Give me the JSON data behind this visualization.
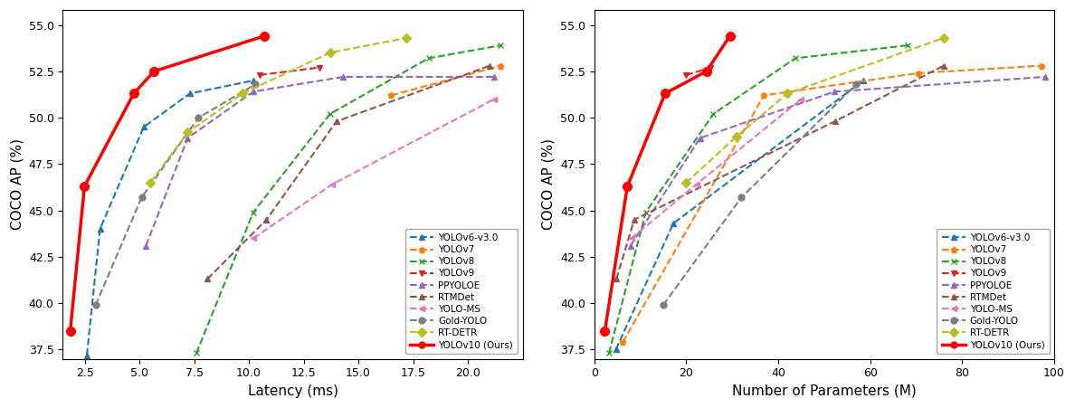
{
  "left_chart": {
    "xlabel": "Latency (ms)",
    "ylabel": "COCO AP (%)",
    "xlim": [
      1.5,
      22.5
    ],
    "ylim": [
      37.0,
      55.8
    ],
    "series": {
      "YOLOv6-v3.0": {
        "x": [
          2.6,
          3.2,
          5.2,
          7.3,
          10.2
        ],
        "y": [
          37.2,
          44.0,
          49.5,
          51.3,
          52.0
        ],
        "color": "#1f77b4",
        "marker": "^",
        "linestyle": "--",
        "lw": 1.5
      },
      "YOLOv7": {
        "x": [
          16.5,
          21.5
        ],
        "y": [
          51.2,
          52.8
        ],
        "color": "#ff7f0e",
        "marker": "p",
        "linestyle": "--",
        "lw": 1.5
      },
      "YOLOv8": {
        "x": [
          7.6,
          10.2,
          13.7,
          18.2,
          21.5
        ],
        "y": [
          37.3,
          44.9,
          50.2,
          53.2,
          53.9
        ],
        "color": "#2ca02c",
        "marker": "x",
        "linestyle": "--",
        "lw": 1.5
      },
      "YOLOv9": {
        "x": [
          10.5,
          13.2
        ],
        "y": [
          52.3,
          52.7
        ],
        "color": "#d62728",
        "marker": "v",
        "linestyle": "--",
        "lw": 1.5
      },
      "PPYOLOE": {
        "x": [
          5.3,
          7.2,
          10.2,
          14.3,
          21.2
        ],
        "y": [
          43.1,
          48.9,
          51.4,
          52.2,
          52.2
        ],
        "color": "#9467bd",
        "marker": "^",
        "linestyle": "--",
        "lw": 1.5
      },
      "RTMDet": {
        "x": [
          8.1,
          10.8,
          14.0,
          21.0
        ],
        "y": [
          41.3,
          44.5,
          49.8,
          52.8
        ],
        "color": "#8c564b",
        "marker": "^",
        "linestyle": "--",
        "lw": 1.5
      },
      "YOLO-MS": {
        "x": [
          10.2,
          13.8,
          21.2
        ],
        "y": [
          43.5,
          46.4,
          51.0
        ],
        "color": "#e377c2",
        "marker": "<",
        "linestyle": "--",
        "lw": 1.5
      },
      "Gold-YOLO": {
        "x": [
          3.0,
          5.1,
          7.7,
          10.3
        ],
        "y": [
          39.9,
          45.7,
          50.0,
          51.8
        ],
        "color": "#7f7f7f",
        "marker": "o",
        "linestyle": "--",
        "lw": 1.5
      },
      "RT-DETR": {
        "x": [
          5.5,
          7.2,
          9.7,
          13.7,
          17.2
        ],
        "y": [
          46.5,
          49.2,
          51.3,
          53.5,
          54.3
        ],
        "color": "#bcbd22",
        "marker": "D",
        "linestyle": "--",
        "lw": 1.5
      },
      "YOLOv10 (Ours)": {
        "x": [
          1.84,
          2.49,
          4.74,
          5.67,
          10.7
        ],
        "y": [
          38.5,
          46.3,
          51.3,
          52.5,
          54.4
        ],
        "color": "#ff0000",
        "marker": "o",
        "linestyle": "-",
        "lw": 2.5
      }
    }
  },
  "right_chart": {
    "xlabel": "Number of Parameters (M)",
    "ylabel": "COCO AP (%)",
    "xlim": [
      0,
      100
    ],
    "ylim": [
      37.0,
      55.8
    ],
    "series": {
      "YOLOv6-v3.0": {
        "x": [
          4.7,
          17.2,
          58.5
        ],
        "y": [
          37.5,
          44.3,
          52.0
        ],
        "color": "#1f77b4",
        "marker": "^",
        "linestyle": "--",
        "lw": 1.5
      },
      "YOLOv7": {
        "x": [
          6.2,
          36.9,
          70.4,
          97.2
        ],
        "y": [
          37.9,
          51.2,
          52.4,
          52.8
        ],
        "color": "#ff7f0e",
        "marker": "p",
        "linestyle": "--",
        "lw": 1.5
      },
      "YOLOv8": {
        "x": [
          3.2,
          11.2,
          25.9,
          43.7,
          68.2
        ],
        "y": [
          37.3,
          44.9,
          50.2,
          53.2,
          53.9
        ],
        "color": "#2ca02c",
        "marker": "x",
        "linestyle": "--",
        "lw": 1.5
      },
      "YOLOv9": {
        "x": [
          20.0,
          25.3
        ],
        "y": [
          52.3,
          52.7
        ],
        "color": "#d62728",
        "marker": "v",
        "linestyle": "--",
        "lw": 1.5
      },
      "PPYOLOE": {
        "x": [
          7.9,
          23.0,
          52.2,
          98.0
        ],
        "y": [
          43.1,
          48.9,
          51.4,
          52.2
        ],
        "color": "#9467bd",
        "marker": "^",
        "linestyle": "--",
        "lw": 1.5
      },
      "RTMDet": {
        "x": [
          4.8,
          8.7,
          52.3,
          76.0
        ],
        "y": [
          41.3,
          44.5,
          49.8,
          52.8
        ],
        "color": "#8c564b",
        "marker": "^",
        "linestyle": "--",
        "lw": 1.5
      },
      "YOLO-MS": {
        "x": [
          8.1,
          22.2,
          45.0
        ],
        "y": [
          43.5,
          46.4,
          51.0
        ],
        "color": "#e377c2",
        "marker": "<",
        "linestyle": "--",
        "lw": 1.5
      },
      "Gold-YOLO": {
        "x": [
          15.0,
          32.0,
          57.0
        ],
        "y": [
          39.9,
          45.7,
          51.8
        ],
        "color": "#7f7f7f",
        "marker": "o",
        "linestyle": "--",
        "lw": 1.5
      },
      "RT-DETR": {
        "x": [
          20.0,
          31.0,
          42.0,
          76.0
        ],
        "y": [
          46.5,
          49.0,
          51.3,
          54.3
        ],
        "color": "#bcbd22",
        "marker": "D",
        "linestyle": "--",
        "lw": 1.5
      },
      "YOLOv10 (Ours)": {
        "x": [
          2.3,
          7.2,
          15.4,
          24.4,
          29.5
        ],
        "y": [
          38.5,
          46.3,
          51.3,
          52.5,
          54.4
        ],
        "color": "#ff0000",
        "marker": "o",
        "linestyle": "-",
        "lw": 2.5
      }
    }
  },
  "legend_order": [
    "YOLOv6-v3.0",
    "YOLOv7",
    "YOLOv8",
    "YOLOv9",
    "PPYOLOE",
    "RTMDet",
    "YOLO-MS",
    "Gold-YOLO",
    "RT-DETR",
    "YOLOv10 (Ours)"
  ],
  "yticks": [
    37.5,
    40.0,
    42.5,
    45.0,
    47.5,
    50.0,
    52.5,
    55.0
  ],
  "left_xticks": [
    2.5,
    5.0,
    7.5,
    10.0,
    12.5,
    15.0,
    17.5,
    20.0
  ],
  "right_xticks": [
    0,
    20,
    40,
    60,
    80,
    100
  ],
  "background_color": "#ffffff"
}
